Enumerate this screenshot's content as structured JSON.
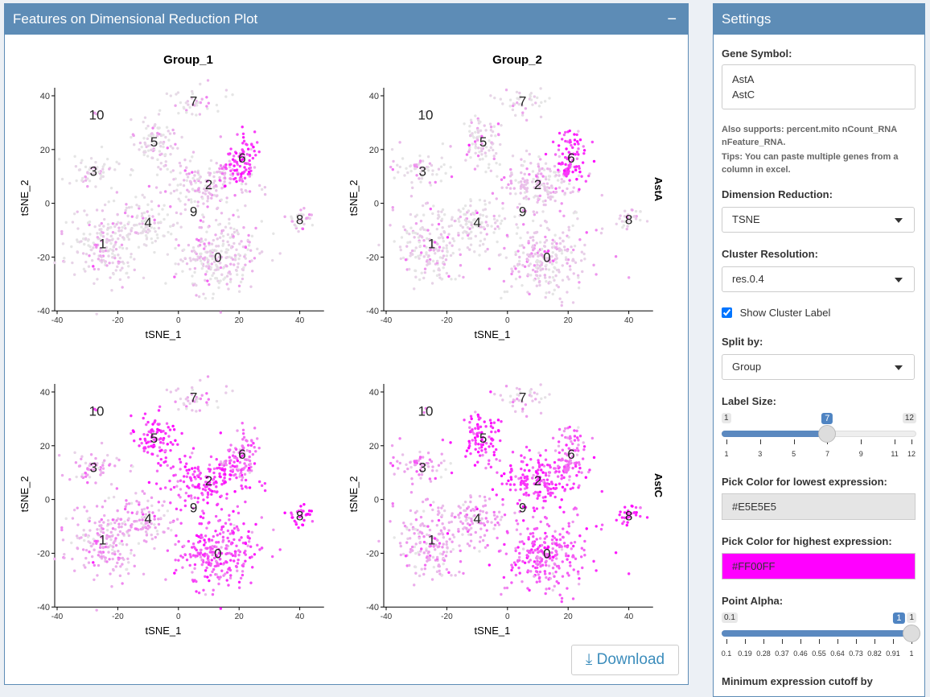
{
  "left_panel": {
    "title": "Features on Dimensional Reduction Plot",
    "collapse_label": "−",
    "download_label": "Download"
  },
  "plot": {
    "groups": [
      "Group_1",
      "Group_2"
    ],
    "genes": [
      "AstA",
      "AstC"
    ],
    "xlabel": "tSNE_1",
    "ylabel": "tSNE_2",
    "xticks": [
      -40,
      -20,
      0,
      20,
      40
    ],
    "yticks": [
      -40,
      -20,
      0,
      20,
      40
    ],
    "low_color": "#E5E5E5",
    "high_color": "#FF00FF",
    "clusters": [
      {
        "id": "0",
        "x": 13,
        "y": -20,
        "sx": 7,
        "sy": 7,
        "n": 260,
        "expr": {
          "AstA": [
            0.1,
            0.12
          ],
          "AstC": [
            0.65,
            0.6
          ]
        }
      },
      {
        "id": "1",
        "x": -25,
        "y": -15,
        "sx": 6,
        "sy": 7,
        "n": 200,
        "expr": {
          "AstA": [
            0.08,
            0.08
          ],
          "AstC": [
            0.25,
            0.25
          ]
        }
      },
      {
        "id": "2",
        "x": 10,
        "y": 7,
        "sx": 7,
        "sy": 5,
        "n": 180,
        "expr": {
          "AstA": [
            0.15,
            0.15
          ],
          "AstC": [
            0.75,
            0.75
          ]
        }
      },
      {
        "id": "3",
        "x": -28,
        "y": 12,
        "sx": 5,
        "sy": 3,
        "n": 60,
        "expr": {
          "AstA": [
            0.05,
            0.05
          ],
          "AstC": [
            0.3,
            0.3
          ]
        }
      },
      {
        "id": "4",
        "x": -10,
        "y": -7,
        "sx": 4,
        "sy": 5,
        "n": 90,
        "expr": {
          "AstA": [
            0.05,
            0.05
          ],
          "AstC": [
            0.3,
            0.3
          ]
        }
      },
      {
        "id": "5",
        "x": -8,
        "y": 23,
        "sx": 4,
        "sy": 5,
        "n": 90,
        "expr": {
          "AstA": [
            0.08,
            0.08
          ],
          "AstC": [
            0.8,
            0.8
          ]
        }
      },
      {
        "id": "6",
        "x": 21,
        "y": 17,
        "sx": 3,
        "sy": 5,
        "n": 90,
        "expr": {
          "AstA": [
            0.75,
            0.75
          ],
          "AstC": [
            0.5,
            0.5
          ]
        }
      },
      {
        "id": "7",
        "x": 5,
        "y": 38,
        "sx": 5,
        "sy": 3,
        "n": 40,
        "expr": {
          "AstA": [
            0.05,
            0.05
          ],
          "AstC": [
            0.15,
            0.15
          ]
        }
      },
      {
        "id": "8",
        "x": 40,
        "y": -6,
        "sx": 2,
        "sy": 2,
        "n": 30,
        "expr": {
          "AstA": [
            0.1,
            0.1
          ],
          "AstC": [
            0.85,
            0.85
          ]
        }
      },
      {
        "id": "9",
        "x": 5,
        "y": -3,
        "sx": 1,
        "sy": 1,
        "n": 0,
        "expr": {
          "AstA": [
            0,
            0
          ],
          "AstC": [
            0,
            0
          ]
        }
      },
      {
        "id": "10",
        "x": -27,
        "y": 33,
        "sx": 0.5,
        "sy": 0.5,
        "n": 2,
        "expr": {
          "AstA": [
            0,
            0
          ],
          "AstC": [
            0.4,
            0.4
          ]
        }
      }
    ]
  },
  "settings": {
    "title": "Settings",
    "gene_symbol_label": "Gene Symbol:",
    "gene_symbol_value": "AstA\nAstC",
    "help1": "Also supports: percent.mito nCount_RNA nFeature_RNA.",
    "help2": "Tips: You can paste multiple genes from a column in excel.",
    "dim_red_label": "Dimension Reduction:",
    "dim_red_value": "TSNE",
    "cluster_res_label": "Cluster Resolution:",
    "cluster_res_value": "res.0.4",
    "show_label_text": "Show Cluster Label",
    "show_label_checked": true,
    "split_label": "Split by:",
    "split_value": "Group",
    "label_size": {
      "label": "Label Size:",
      "min": "1",
      "max": "12",
      "value": "7",
      "fraction": 0.545,
      "ticks": [
        "1",
        "3",
        "5",
        "7",
        "9",
        "11",
        "12"
      ]
    },
    "low_color_label": "Pick Color for lowest expression:",
    "low_color_value": "#E5E5E5",
    "high_color_label": "Pick Color for highest expression:",
    "high_color_value": "#FF00FF",
    "point_alpha": {
      "label": "Point Alpha:",
      "min": "0.1",
      "max": "1",
      "value": "1",
      "fraction": 1,
      "ticks": [
        "0.1",
        "0.19",
        "0.28",
        "0.37",
        "0.46",
        "0.55",
        "0.64",
        "0.73",
        "0.82",
        "0.91",
        "1"
      ]
    },
    "cutoff_label": "Minimum expression cutoff by"
  }
}
